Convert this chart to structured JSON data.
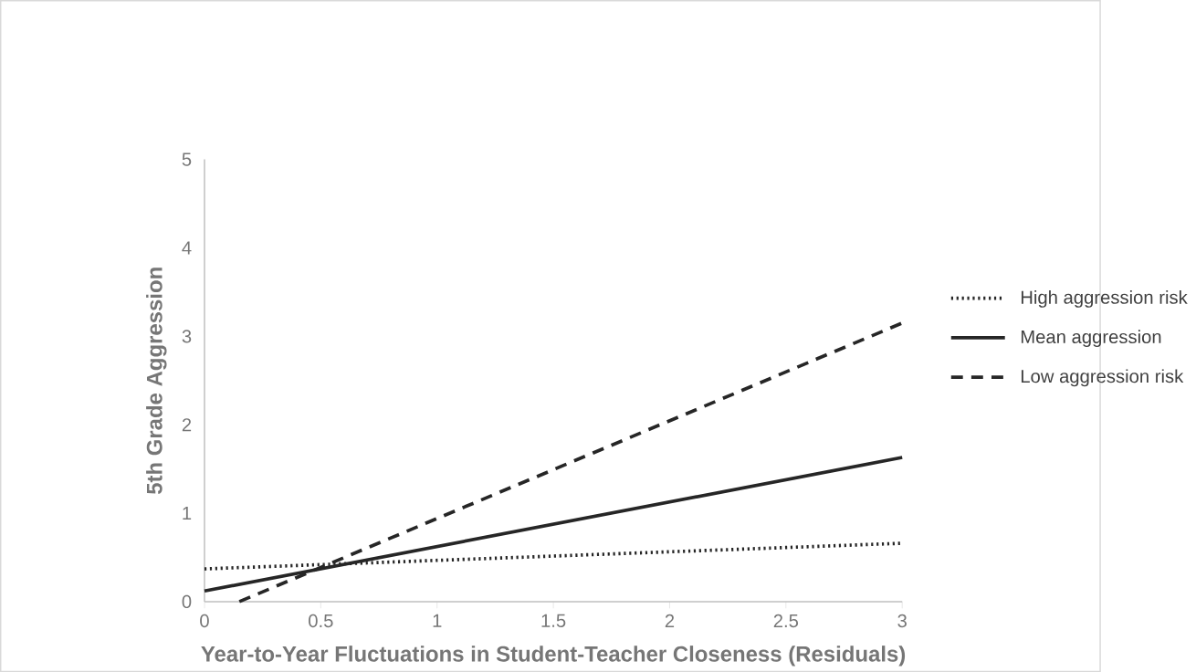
{
  "chart_data": {
    "type": "line",
    "xlabel": "Year-to-Year Fluctuations in Student-Teacher Closeness (Residuals)",
    "ylabel": "5th Grade Aggression",
    "xlim": [
      0,
      3
    ],
    "ylim": [
      0,
      5
    ],
    "xticks": [
      0,
      0.5,
      1,
      1.5,
      2,
      2.5,
      3
    ],
    "yticks": [
      0,
      1,
      2,
      3,
      4,
      5
    ],
    "legend": "right",
    "series": [
      {
        "name": "High aggression risk",
        "color": "#262626",
        "line_style": "dotted",
        "x": [
          0,
          3
        ],
        "values": [
          0.37,
          0.66
        ]
      },
      {
        "name": "Mean aggression",
        "color": "#262626",
        "line_style": "solid",
        "x": [
          0,
          3
        ],
        "values": [
          0.12,
          1.63
        ]
      },
      {
        "name": "Low aggression risk",
        "color": "#262626",
        "line_style": "dashed",
        "x": [
          0.15,
          3
        ],
        "values": [
          0,
          3.15
        ]
      }
    ]
  }
}
